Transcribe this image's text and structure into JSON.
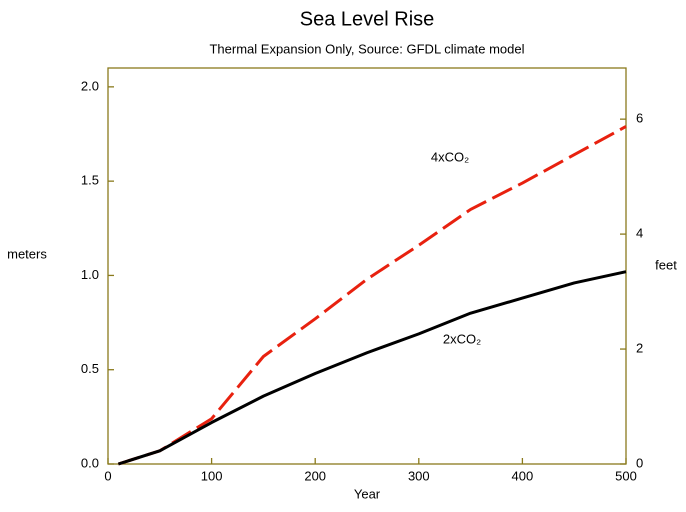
{
  "chart_data": {
    "type": "line",
    "title": "Sea Level Rise",
    "subtitle": "Thermal Expansion Only,  Source:  GFDL climate model",
    "x_label": "Year",
    "y_label": "meters",
    "y2_label": "feet",
    "x": [
      10,
      50,
      100,
      150,
      200,
      250,
      300,
      350,
      400,
      450,
      500
    ],
    "series": [
      {
        "name": "4xCO₂",
        "color": "#e8210f",
        "dashed": true,
        "values": [
          0,
          0.07,
          0.24,
          0.57,
          0.77,
          0.98,
          1.16,
          1.35,
          1.49,
          1.64,
          1.79
        ]
      },
      {
        "name": "2xCO₂",
        "color": "#000000",
        "dashed": false,
        "values": [
          0,
          0.07,
          0.22,
          0.36,
          0.48,
          0.59,
          0.69,
          0.8,
          0.88,
          0.96,
          1.02
        ]
      }
    ],
    "xlim": [
      0,
      500
    ],
    "xticks": [
      0,
      100,
      200,
      300,
      400,
      500
    ],
    "ylim": [
      0,
      2.1
    ],
    "yticks": [
      {
        "value": 0,
        "label": "0.0"
      },
      0.5,
      {
        "value": 1,
        "label": "1.0"
      },
      1.5,
      {
        "value": 2,
        "label": "2.0"
      }
    ],
    "y2lim": [
      0,
      6.89
    ],
    "y2ticks": [
      0,
      2,
      4,
      6
    ]
  }
}
